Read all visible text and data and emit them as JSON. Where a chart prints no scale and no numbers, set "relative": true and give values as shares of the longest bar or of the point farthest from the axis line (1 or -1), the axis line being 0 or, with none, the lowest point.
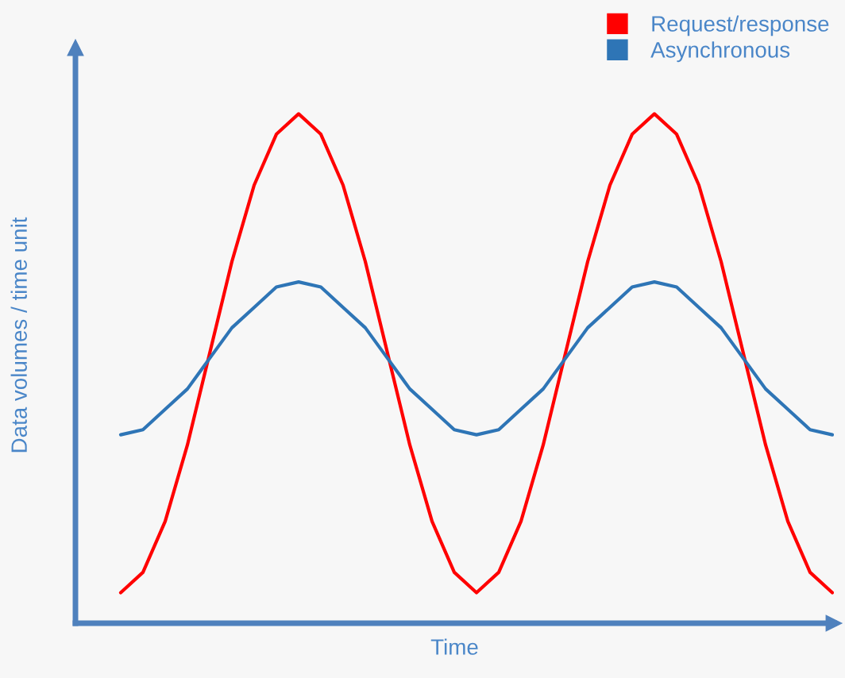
{
  "chart_data": {
    "type": "line",
    "relative": true,
    "xlabel": "Time",
    "ylabel": "Data volumes / time unit",
    "categories": [
      null,
      null,
      null,
      null,
      null,
      null,
      null,
      null,
      null,
      null,
      null,
      null,
      null,
      null,
      null,
      null,
      null,
      null,
      null,
      null,
      null,
      null,
      null,
      null,
      null,
      null,
      null,
      null,
      null,
      null,
      null,
      null,
      null
    ],
    "series": [
      {
        "name": "Request/response",
        "color": "#ff0000",
        "values": [
          0.06,
          0.1,
          0.2,
          0.35,
          0.53,
          0.71,
          0.86,
          0.96,
          1.0,
          0.96,
          0.86,
          0.71,
          0.53,
          0.35,
          0.2,
          0.1,
          0.06,
          0.1,
          0.2,
          0.35,
          0.53,
          0.71,
          0.86,
          0.96,
          1.0,
          0.96,
          0.86,
          0.71,
          0.53,
          0.35,
          0.2,
          0.1,
          0.06
        ]
      },
      {
        "name": "Asynchronous",
        "color": "#2e75b6",
        "values": [
          0.37,
          0.38,
          0.42,
          0.46,
          0.52,
          0.58,
          0.62,
          0.66,
          0.67,
          0.66,
          0.62,
          0.58,
          0.52,
          0.46,
          0.42,
          0.38,
          0.37,
          0.38,
          0.42,
          0.46,
          0.52,
          0.58,
          0.62,
          0.66,
          0.67,
          0.66,
          0.62,
          0.58,
          0.52,
          0.46,
          0.42,
          0.38,
          0.37
        ]
      }
    ],
    "legend": "top right",
    "marker": "none",
    "line_style": "solid"
  }
}
